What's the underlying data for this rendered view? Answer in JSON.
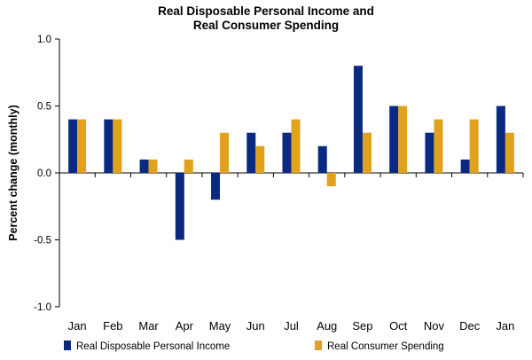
{
  "chart_data": {
    "type": "bar",
    "title_lines": [
      "Real Disposable Personal Income and",
      "Real Consumer Spending"
    ],
    "ylabel": "Percent change (monthly)",
    "xlabel": "",
    "ylim": [
      -1.0,
      1.0
    ],
    "yticks": [
      1.0,
      0.5,
      0.0,
      -0.5,
      -1.0
    ],
    "ytick_labels": [
      "1.0",
      "0.5",
      "0.0",
      "-0.5",
      "-1.0"
    ],
    "categories": [
      "Jan",
      "Feb",
      "Mar",
      "Apr",
      "May",
      "Jun",
      "Jul",
      "Aug",
      "Sep",
      "Oct",
      "Nov",
      "Dec",
      "Jan"
    ],
    "series": [
      {
        "name": "Real Disposable Personal Income",
        "color": "#0a2a82",
        "values": [
          0.4,
          0.4,
          0.1,
          -0.5,
          -0.2,
          0.3,
          0.3,
          0.2,
          0.8,
          0.5,
          0.3,
          0.1,
          0.5
        ]
      },
      {
        "name": "Real Consumer Spending",
        "color": "#e0a21c",
        "values": [
          0.4,
          0.4,
          0.1,
          0.1,
          0.3,
          0.2,
          0.4,
          -0.1,
          0.3,
          0.5,
          0.4,
          0.4,
          0.3
        ]
      }
    ],
    "legend_position": "bottom",
    "grid": false
  }
}
